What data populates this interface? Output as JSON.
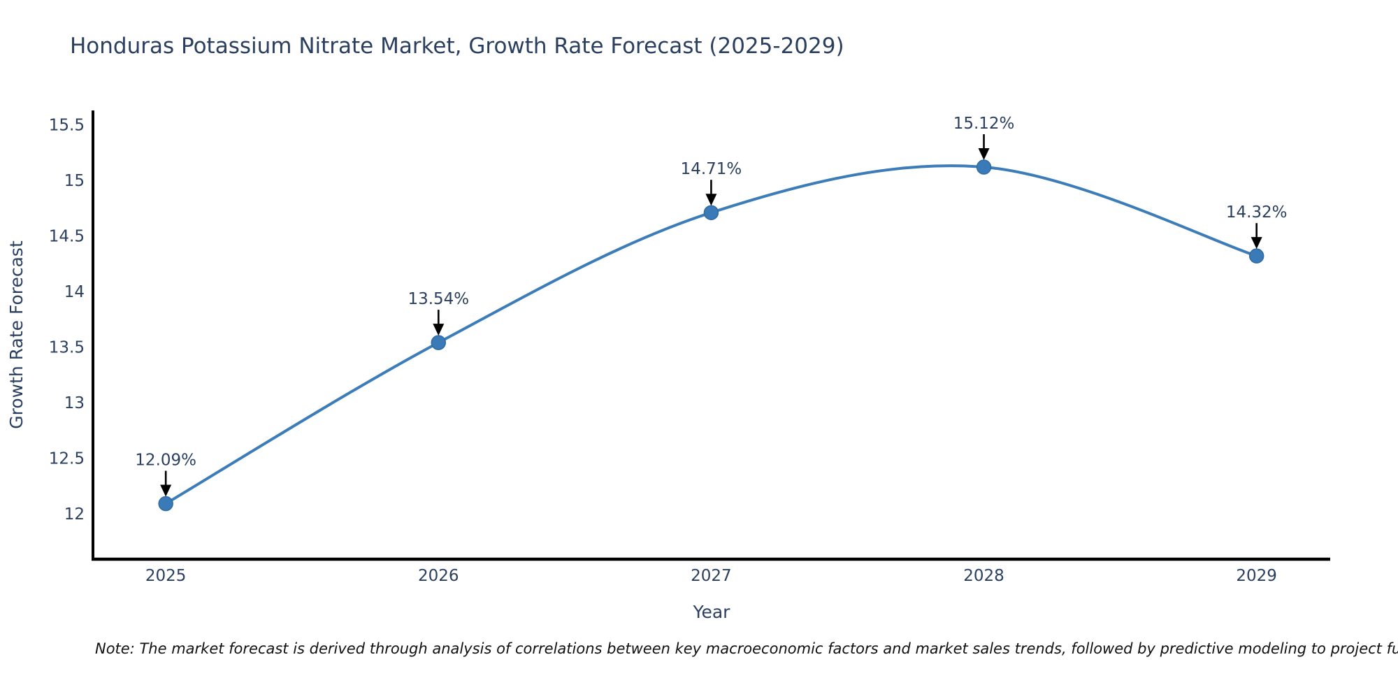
{
  "title": "Honduras Potassium Nitrate Market, Growth Rate Forecast (2025-2029)",
  "note": "Note: The market forecast is derived through analysis of correlations between key macroeconomic factors and market sales trends, followed by predictive modeling to project future sales.",
  "chart_data": {
    "type": "line",
    "title": "Honduras Potassium Nitrate Market, Growth Rate Forecast (2025-2029)",
    "xlabel": "Year",
    "ylabel": "Growth Rate Forecast",
    "categories": [
      2025,
      2026,
      2027,
      2028,
      2029
    ],
    "values": [
      12.09,
      13.54,
      14.71,
      15.12,
      14.32
    ],
    "point_labels": [
      "12.09%",
      "13.54%",
      "14.71%",
      "15.12%",
      "14.32%"
    ],
    "yticks": [
      12,
      12.5,
      13,
      13.5,
      14,
      14.5,
      15,
      15.5
    ],
    "ylim": [
      11.59,
      15.63
    ],
    "xlim": [
      2024.733,
      2029.27
    ],
    "grid": false,
    "legend_position": "none",
    "line_shape": "spline",
    "colors": {
      "line": "#3c7cb8",
      "marker_fill": "#3a7ab6",
      "marker_edge": "#2f6ba3",
      "annotation_arrow": "#000000",
      "text": "#2a3f5f",
      "axis": "#000000"
    }
  }
}
